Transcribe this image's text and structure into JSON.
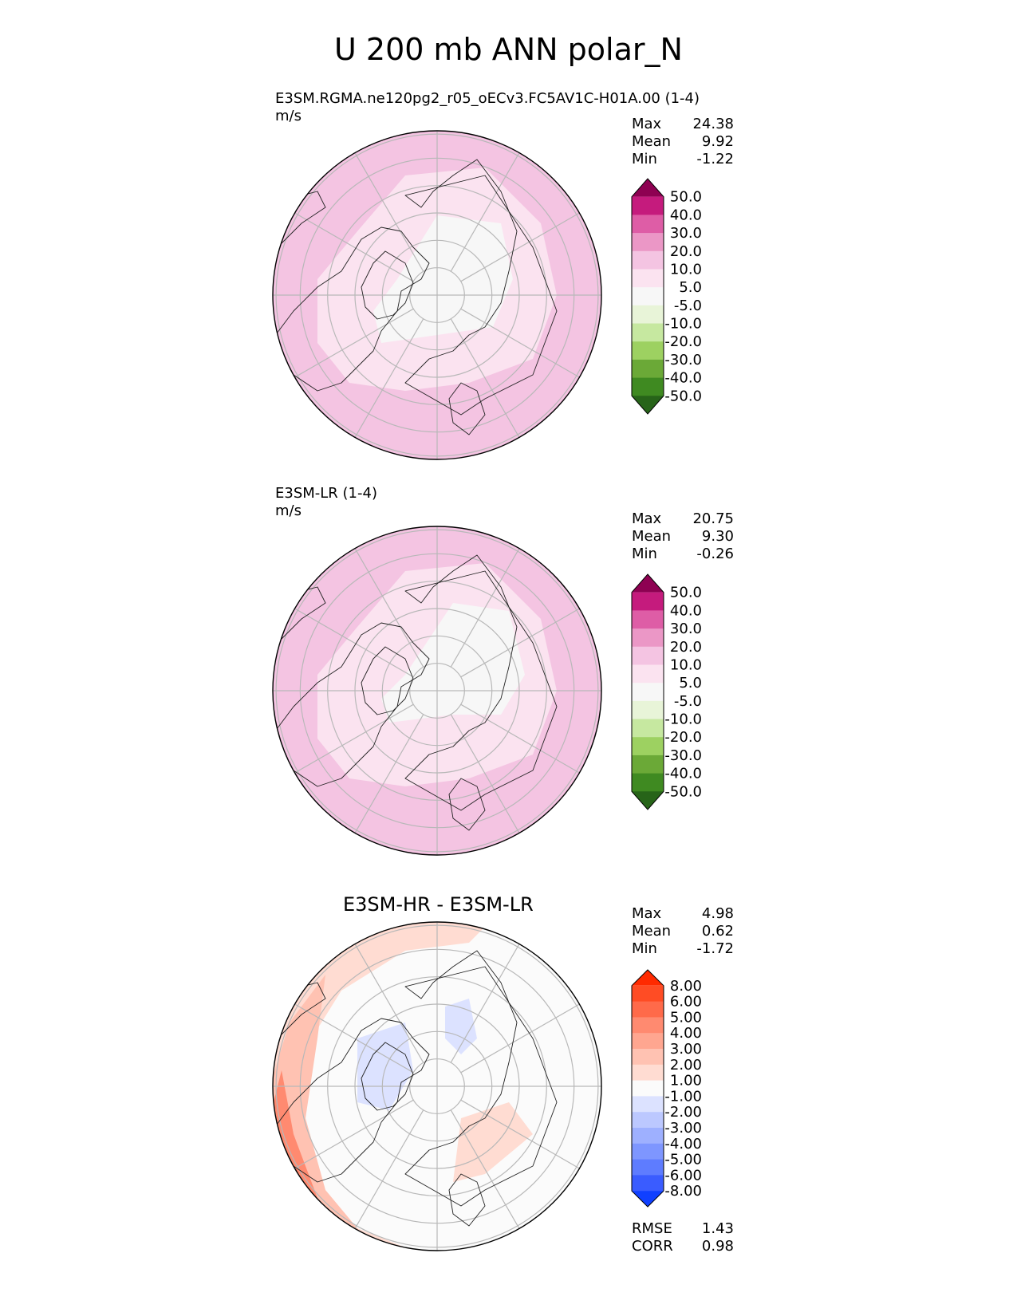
{
  "title": "U 200 mb ANN polar_N",
  "colors": {
    "land_line": "#222222",
    "grid": "#b8b8b8",
    "frame": "#000000"
  },
  "chart_data": [
    {
      "type": "heatmap",
      "projection": "north-polar-stereographic",
      "title": "E3SM.RGMA.ne120pg2_r05_oECv3.FC5AV1C-H01A.00 (1-4)",
      "units": "m/s",
      "stats": {
        "Max": "24.38",
        "Mean": "9.92",
        "Min": "-1.22"
      },
      "colorbar": {
        "levels": [
          "50.0",
          "40.0",
          "30.0",
          "20.0",
          "10.0",
          "5.0",
          "-5.0",
          "-10.0",
          "-20.0",
          "-30.0",
          "-40.0",
          "-50.0"
        ],
        "colors": [
          "#8e0152",
          "#c51b7d",
          "#de5da6",
          "#eb97c6",
          "#f4c4e2",
          "#fbe3f0",
          "#f7f7f7",
          "#e8f4d8",
          "#c6e8a0",
          "#9dd161",
          "#6ba937",
          "#3f8a21",
          "#276419"
        ]
      },
      "field": {
        "background_level": "10.0 to 20.0",
        "regions": [
          "-5.0 to 5.0 near pole",
          "5.0 to 10.0 ring",
          "20.0 to 30.0 lower-left edge"
        ]
      }
    },
    {
      "type": "heatmap",
      "projection": "north-polar-stereographic",
      "title": "E3SM-LR (1-4)",
      "units": "m/s",
      "stats": {
        "Max": "20.75",
        "Mean": "9.30",
        "Min": "-0.26"
      },
      "colorbar": {
        "levels": [
          "50.0",
          "40.0",
          "30.0",
          "20.0",
          "10.0",
          "5.0",
          "-5.0",
          "-10.0",
          "-20.0",
          "-30.0",
          "-40.0",
          "-50.0"
        ],
        "colors": [
          "#8e0152",
          "#c51b7d",
          "#de5da6",
          "#eb97c6",
          "#f4c4e2",
          "#fbe3f0",
          "#f7f7f7",
          "#e8f4d8",
          "#c6e8a0",
          "#9dd161",
          "#6ba937",
          "#3f8a21",
          "#276419"
        ]
      },
      "field": {
        "background_level": "10.0 to 20.0",
        "regions": [
          "-5.0 to 5.0 near pole",
          "5.0 to 10.0 ring"
        ]
      }
    },
    {
      "type": "heatmap",
      "projection": "north-polar-stereographic",
      "title": "E3SM-HR - E3SM-LR",
      "stats": {
        "Max": "4.98",
        "Mean": "0.62",
        "Min": "-1.72"
      },
      "metrics": {
        "RMSE": "1.43",
        "CORR": "0.98"
      },
      "colorbar": {
        "levels": [
          "8.00",
          "6.00",
          "5.00",
          "4.00",
          "3.00",
          "2.00",
          "1.00",
          "-1.00",
          "-2.00",
          "-3.00",
          "-4.00",
          "-5.00",
          "-6.00",
          "-8.00"
        ],
        "colors": [
          "#ff2a00",
          "#ff4c24",
          "#ff6a4a",
          "#ff8a70",
          "#ffa690",
          "#ffc2b2",
          "#ffdcd2",
          "#fbfbfb",
          "#dce2ff",
          "#bcc8ff",
          "#9eb0ff",
          "#7e96ff",
          "#5e7cff",
          "#3a5cff",
          "#1040ff"
        ]
      },
      "field": {
        "background_level": "-1.00 to 1.00",
        "regions": [
          "1.00 to 4.00 left edge",
          "-2.00 to -1.00 patches near pole"
        ]
      }
    }
  ]
}
